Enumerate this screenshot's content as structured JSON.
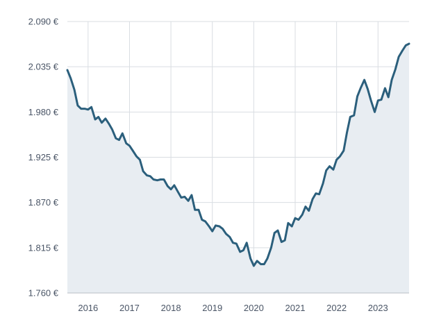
{
  "chart_data": {
    "type": "area",
    "title": "",
    "xlabel": "",
    "ylabel": "",
    "ylim": [
      1760,
      2090
    ],
    "xlim": [
      2015.5,
      2023.75
    ],
    "y_ticks": [
      {
        "value": 2090,
        "label": "2.090 €"
      },
      {
        "value": 2035,
        "label": "2.035 €"
      },
      {
        "value": 1980,
        "label": "1.980 €"
      },
      {
        "value": 1925,
        "label": "1.925 €"
      },
      {
        "value": 1870,
        "label": "1.870 €"
      },
      {
        "value": 1815,
        "label": "1.815 €"
      },
      {
        "value": 1760,
        "label": "1.760 €"
      }
    ],
    "x_ticks": [
      {
        "value": 2016,
        "label": "2016"
      },
      {
        "value": 2017,
        "label": "2017"
      },
      {
        "value": 2018,
        "label": "2018"
      },
      {
        "value": 2019,
        "label": "2019"
      },
      {
        "value": 2020,
        "label": "2020"
      },
      {
        "value": 2021,
        "label": "2021"
      },
      {
        "value": 2022,
        "label": "2022"
      },
      {
        "value": 2023,
        "label": "2023"
      }
    ],
    "grid": true,
    "legend": "none",
    "colors": {
      "line": "#2b5f7c",
      "fill": "#e8edf2"
    },
    "series": [
      {
        "values": [
          [
            2015.5,
            2031
          ],
          [
            2015.58,
            2021
          ],
          [
            2015.67,
            2007
          ],
          [
            2015.75,
            1988
          ],
          [
            2015.83,
            1984
          ],
          [
            2015.92,
            1984
          ],
          [
            2016.0,
            1983
          ],
          [
            2016.08,
            1986
          ],
          [
            2016.17,
            1971
          ],
          [
            2016.25,
            1974
          ],
          [
            2016.33,
            1967
          ],
          [
            2016.42,
            1972
          ],
          [
            2016.5,
            1966
          ],
          [
            2016.58,
            1959
          ],
          [
            2016.67,
            1948
          ],
          [
            2016.75,
            1946
          ],
          [
            2016.83,
            1954
          ],
          [
            2016.92,
            1942
          ],
          [
            2017.0,
            1939
          ],
          [
            2017.08,
            1933
          ],
          [
            2017.17,
            1926
          ],
          [
            2017.25,
            1922
          ],
          [
            2017.33,
            1908
          ],
          [
            2017.42,
            1903
          ],
          [
            2017.5,
            1902
          ],
          [
            2017.58,
            1898
          ],
          [
            2017.67,
            1897
          ],
          [
            2017.75,
            1898
          ],
          [
            2017.83,
            1898
          ],
          [
            2017.92,
            1890
          ],
          [
            2018.0,
            1886
          ],
          [
            2018.08,
            1891
          ],
          [
            2018.17,
            1883
          ],
          [
            2018.25,
            1876
          ],
          [
            2018.33,
            1877
          ],
          [
            2018.42,
            1872
          ],
          [
            2018.5,
            1879
          ],
          [
            2018.58,
            1861
          ],
          [
            2018.67,
            1861
          ],
          [
            2018.75,
            1849
          ],
          [
            2018.83,
            1847
          ],
          [
            2018.92,
            1841
          ],
          [
            2019.0,
            1835
          ],
          [
            2019.08,
            1842
          ],
          [
            2019.17,
            1841
          ],
          [
            2019.25,
            1838
          ],
          [
            2019.33,
            1832
          ],
          [
            2019.42,
            1828
          ],
          [
            2019.5,
            1821
          ],
          [
            2019.58,
            1820
          ],
          [
            2019.67,
            1810
          ],
          [
            2019.75,
            1812
          ],
          [
            2019.83,
            1821
          ],
          [
            2019.92,
            1802
          ],
          [
            2020.0,
            1793
          ],
          [
            2020.08,
            1799
          ],
          [
            2020.17,
            1795
          ],
          [
            2020.25,
            1795
          ],
          [
            2020.33,
            1802
          ],
          [
            2020.42,
            1815
          ],
          [
            2020.5,
            1833
          ],
          [
            2020.58,
            1836
          ],
          [
            2020.67,
            1822
          ],
          [
            2020.75,
            1824
          ],
          [
            2020.83,
            1845
          ],
          [
            2020.92,
            1841
          ],
          [
            2021.0,
            1851
          ],
          [
            2021.08,
            1849
          ],
          [
            2021.17,
            1855
          ],
          [
            2021.25,
            1865
          ],
          [
            2021.33,
            1860
          ],
          [
            2021.42,
            1874
          ],
          [
            2021.5,
            1881
          ],
          [
            2021.58,
            1880
          ],
          [
            2021.67,
            1893
          ],
          [
            2021.75,
            1909
          ],
          [
            2021.83,
            1914
          ],
          [
            2021.92,
            1910
          ],
          [
            2022.0,
            1922
          ],
          [
            2022.08,
            1926
          ],
          [
            2022.17,
            1933
          ],
          [
            2022.25,
            1955
          ],
          [
            2022.33,
            1974
          ],
          [
            2022.42,
            1976
          ],
          [
            2022.5,
            1999
          ],
          [
            2022.58,
            2009
          ],
          [
            2022.67,
            2019
          ],
          [
            2022.75,
            2008
          ],
          [
            2022.83,
            1994
          ],
          [
            2022.92,
            1980
          ],
          [
            2023.0,
            1994
          ],
          [
            2023.08,
            1995
          ],
          [
            2023.17,
            2009
          ],
          [
            2023.25,
            1998
          ],
          [
            2023.33,
            2019
          ],
          [
            2023.42,
            2032
          ],
          [
            2023.5,
            2047
          ],
          [
            2023.58,
            2054
          ],
          [
            2023.67,
            2061
          ],
          [
            2023.75,
            2063
          ]
        ]
      }
    ]
  }
}
